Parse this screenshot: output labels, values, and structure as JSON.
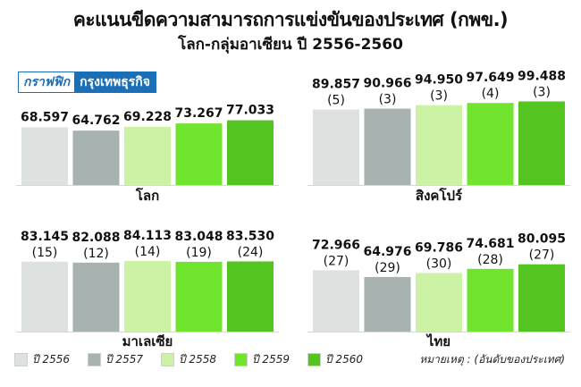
{
  "title": "คะแนนขีดความสามารถการแข่งขันของประเทศ (กพข.)",
  "subtitle": "โลก-กลุ่มอาเซียน ปี 2556-2560",
  "brand": {
    "part1": "กราฟฟิก",
    "part2": "กรุงเทพธุรกิจ"
  },
  "colors": [
    "#dde2e0",
    "#a8b3b1",
    "#ccf2a6",
    "#71e52e",
    "#54c420"
  ],
  "legend": [
    "ปี 2556",
    "ปี 2557",
    "ปี 2558",
    "ปี 2559",
    "ปี 2560"
  ],
  "note": "หมายเหตุ : (อันดับของประเทศ)",
  "chart_data": [
    {
      "type": "bar",
      "label": "โลก",
      "categories": [
        "ปี 2556",
        "ปี 2557",
        "ปี 2558",
        "ปี 2559",
        "ปี 2560"
      ],
      "values": [
        68.597,
        64.762,
        69.228,
        73.267,
        77.033
      ],
      "value_labels": [
        "68.597",
        "64.762",
        "69.228",
        "73.267",
        "77.033"
      ],
      "ranks": []
    },
    {
      "type": "bar",
      "label": "สิงคโปร์",
      "categories": [
        "ปี 2556",
        "ปี 2557",
        "ปี 2558",
        "ปี 2559",
        "ปี 2560"
      ],
      "values": [
        89.857,
        90.966,
        94.95,
        97.649,
        99.488
      ],
      "value_labels": [
        "89.857",
        "90.966",
        "94.950",
        "97.649",
        "99.488"
      ],
      "ranks": [
        "(5)",
        "(3)",
        "(3)",
        "(4)",
        "(3)"
      ]
    },
    {
      "type": "bar",
      "label": "มาเลเซีย",
      "categories": [
        "ปี 2556",
        "ปี 2557",
        "ปี 2558",
        "ปี 2559",
        "ปี 2560"
      ],
      "values": [
        83.145,
        82.088,
        84.113,
        83.048,
        83.53
      ],
      "value_labels": [
        "83.145",
        "82.088",
        "84.113",
        "83.048",
        "83.530"
      ],
      "ranks": [
        "(15)",
        "(12)",
        "(14)",
        "(19)",
        "(24)"
      ]
    },
    {
      "type": "bar",
      "label": "ไทย",
      "categories": [
        "ปี 2556",
        "ปี 2557",
        "ปี 2558",
        "ปี 2559",
        "ปี 2560"
      ],
      "values": [
        72.966,
        64.976,
        69.786,
        74.681,
        80.095
      ],
      "value_labels": [
        "72.966",
        "64.976",
        "69.786",
        "74.681",
        "80.095"
      ],
      "ranks": [
        "(27)",
        "(29)",
        "(30)",
        "(28)",
        "(27)"
      ]
    }
  ]
}
